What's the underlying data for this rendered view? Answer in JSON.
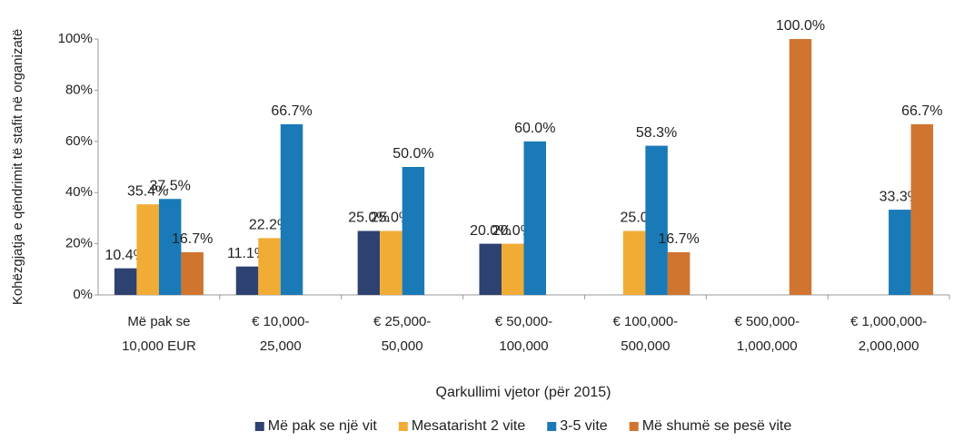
{
  "chart_data": {
    "type": "bar",
    "y_label": "Kohëzgjatja e qëndrimit të stafit në organizatë",
    "x_label": "Qarkullimi vjetor (për 2015)",
    "categories": [
      [
        "Më pak se",
        "10,000 EUR"
      ],
      [
        "€ 10,000-",
        "25,000"
      ],
      [
        "€ 25,000-",
        "50,000"
      ],
      [
        "€ 50,000-",
        "100,000"
      ],
      [
        "€ 100,000-",
        "500,000"
      ],
      [
        "€ 500,000-",
        "1,000,000"
      ],
      [
        "€ 1,000,000-",
        "2,000,000"
      ]
    ],
    "series": [
      {
        "name": "Më pak se një vit",
        "color": "#2e4272",
        "values": [
          10.4,
          11.1,
          25.0,
          20.0,
          null,
          null,
          null
        ],
        "value_labels": [
          "10.4%",
          "11.1%",
          "25.0%",
          "20.0%",
          null,
          null,
          null
        ]
      },
      {
        "name": "Mesatarisht 2 vite",
        "color": "#f0ac35",
        "values": [
          35.4,
          22.2,
          25.0,
          20.0,
          25.0,
          null,
          null
        ],
        "value_labels": [
          "35.4%",
          "22.2%",
          "25.0%",
          "20.0%",
          "25.0",
          null,
          null
        ]
      },
      {
        "name": "3-5 vite",
        "color": "#1a7ab8",
        "values": [
          37.5,
          66.7,
          50.0,
          60.0,
          58.3,
          null,
          33.3
        ],
        "value_labels": [
          "37.5%",
          "66.7%",
          "50.0%",
          "60.0%",
          "58.3%",
          null,
          "33.3%"
        ]
      },
      {
        "name": "Më shumë se pesë vite",
        "color": "#d07530",
        "values": [
          16.7,
          null,
          null,
          null,
          16.7,
          100.0,
          66.7
        ],
        "value_labels": [
          "16.7%",
          null,
          null,
          null,
          "16.7%",
          "100.0%",
          "66.7%"
        ]
      }
    ],
    "ylim": [
      0,
      100
    ],
    "yticks": [
      {
        "value": 0,
        "label": "0%"
      },
      {
        "value": 20,
        "label": "20%"
      },
      {
        "value": 40,
        "label": "40%"
      },
      {
        "value": 60,
        "label": "60%"
      },
      {
        "value": 80,
        "label": "80%"
      },
      {
        "value": 100,
        "label": "100%"
      }
    ],
    "grid": false,
    "legend": "bottom"
  }
}
